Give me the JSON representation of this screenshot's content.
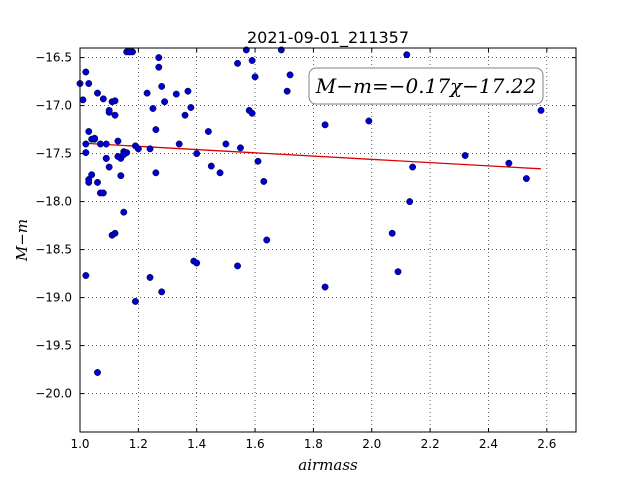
{
  "chart_data": {
    "type": "scatter",
    "title": "2021-09-01_211357",
    "xlabel": "airmass",
    "ylabel": "M−m",
    "xlim": [
      1.0,
      2.7
    ],
    "ylim": [
      -16.4,
      -20.4
    ],
    "y_inverted": true,
    "grid": true,
    "xticks": [
      1.0,
      1.2,
      1.4,
      1.6,
      1.8,
      2.0,
      2.2,
      2.4,
      2.6
    ],
    "xtick_labels": [
      "1.0",
      "1.2",
      "1.4",
      "1.6",
      "1.8",
      "2.0",
      "2.2",
      "2.4",
      "2.6"
    ],
    "yticks": [
      -16.5,
      -17.0,
      -17.5,
      -18.0,
      -18.5,
      -19.0,
      -19.5,
      -20.0
    ],
    "ytick_labels": [
      "−16.5",
      "−17.0",
      "−17.5",
      "−18.0",
      "−18.5",
      "−19.0",
      "−19.5",
      "−20.0"
    ],
    "annotation": "M−m=−0.17χ−17.22",
    "colors": {
      "points": "#0000cc",
      "fit": "#dd0000"
    },
    "fit": {
      "slope": -0.17,
      "intercept": -17.22,
      "x_range": [
        1.03,
        2.58
      ]
    },
    "series": [
      {
        "x": [
          1.0,
          1.01,
          1.02,
          1.03,
          1.02,
          1.03,
          1.04,
          1.05,
          1.06,
          1.07,
          1.08,
          1.09,
          1.1,
          1.1,
          1.11,
          1.12,
          1.13,
          1.12,
          1.14,
          1.15,
          1.16,
          1.17,
          1.18,
          1.19,
          1.2,
          1.23,
          1.25,
          1.26,
          1.27,
          1.28,
          1.29,
          1.33,
          1.34,
          1.36,
          1.37,
          1.38,
          1.4,
          1.44,
          1.45,
          1.48,
          1.5,
          1.54,
          1.55,
          1.57,
          1.58,
          1.59,
          1.6,
          1.61,
          1.63,
          1.64,
          1.69,
          1.71,
          1.72,
          1.84,
          1.84,
          1.99,
          2.07,
          2.09,
          2.12,
          2.13,
          2.14,
          2.32,
          2.47,
          2.53,
          2.58,
          1.02,
          1.03,
          1.04,
          1.05,
          1.06,
          1.07,
          1.08,
          1.09,
          1.1,
          1.11,
          1.12,
          1.13,
          1.14,
          1.15,
          1.16,
          1.17,
          1.24,
          1.24,
          1.26,
          1.27,
          1.28,
          1.39,
          1.4,
          1.54,
          1.59,
          1.02,
          1.03,
          1.09,
          1.15,
          1.19,
          1.06
        ],
        "y": [
          -16.77,
          -16.94,
          -16.65,
          -16.77,
          -17.4,
          -17.27,
          -17.35,
          -17.35,
          -16.87,
          -17.4,
          -16.93,
          -17.4,
          -17.07,
          -17.05,
          -16.96,
          -16.95,
          -17.37,
          -17.1,
          -17.55,
          -17.48,
          -16.44,
          -16.44,
          -16.44,
          -17.42,
          -17.45,
          -16.87,
          -17.03,
          -17.25,
          -16.5,
          -16.8,
          -16.96,
          -16.88,
          -17.4,
          -17.1,
          -16.85,
          -17.02,
          -17.5,
          -17.27,
          -17.63,
          -17.7,
          -17.4,
          -16.56,
          -17.44,
          -16.42,
          -17.05,
          -17.08,
          -16.7,
          -17.58,
          -17.79,
          -18.4,
          -16.42,
          -16.85,
          -16.68,
          -17.2,
          -18.89,
          -17.16,
          -18.33,
          -18.73,
          -16.47,
          -18.0,
          -17.64,
          -17.52,
          -17.6,
          -17.76,
          -17.05,
          -17.49,
          -17.77,
          -17.72,
          -17.34,
          -17.8,
          -17.91,
          -17.91,
          -17.55,
          -17.64,
          -18.35,
          -18.33,
          -17.53,
          -17.73,
          -18.11,
          -17.49,
          -16.44,
          -17.45,
          -18.79,
          -17.7,
          -16.6,
          -18.94,
          -18.62,
          -18.64,
          -18.67,
          -16.53,
          -18.77,
          -17.8,
          -17.55,
          -17.51,
          -19.04,
          -19.78
        ]
      }
    ]
  }
}
